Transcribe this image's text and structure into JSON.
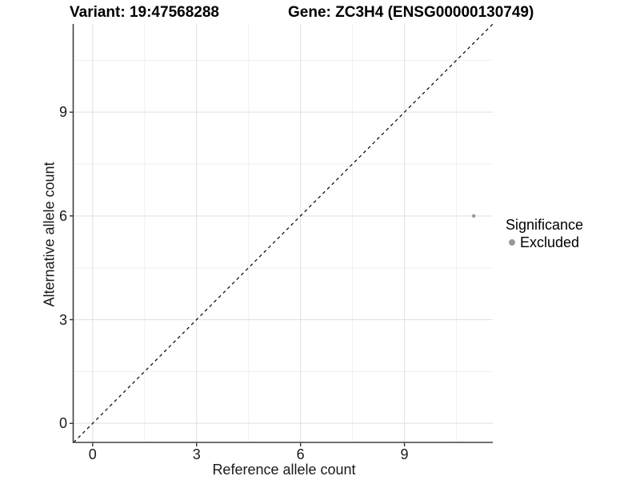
{
  "titles": {
    "variant": "Variant: 19:47568288",
    "gene": "Gene: ZC3H4 (ENSG00000130749)"
  },
  "axes": {
    "x_label": "Reference allele count",
    "y_label": "Alternative allele count"
  },
  "legend": {
    "title": "Significance",
    "items": [
      {
        "label": "Excluded",
        "color": "#999999"
      }
    ]
  },
  "chart_data": {
    "type": "scatter",
    "title": "Variant: 19:47568288   Gene: ZC3H4 (ENSG00000130749)",
    "xlabel": "Reference allele count",
    "ylabel": "Alternative allele count",
    "xlim": [
      -0.55,
      11.55
    ],
    "ylim": [
      -0.55,
      11.55
    ],
    "x_ticks": [
      0,
      3,
      6,
      9
    ],
    "y_ticks": [
      0,
      3,
      6,
      9
    ],
    "x_minor": [
      1.5,
      4.5,
      7.5,
      10.5
    ],
    "y_minor": [
      1.5,
      4.5,
      7.5,
      10.5
    ],
    "grid": "on",
    "legend_position": "right",
    "points": [
      {
        "x": 11,
        "y": 6,
        "significance": "Excluded",
        "color": "#999999",
        "radius": 2.2
      }
    ],
    "reference_line": {
      "style": "dashed",
      "slope": 1,
      "intercept": 0,
      "color": "#000000"
    },
    "colors": {
      "point": "#999999",
      "grid_major": "#e3e3e3",
      "grid_minor": "#f0f0f0",
      "axis_line": "#404040",
      "tick_mark": "#333333"
    }
  }
}
